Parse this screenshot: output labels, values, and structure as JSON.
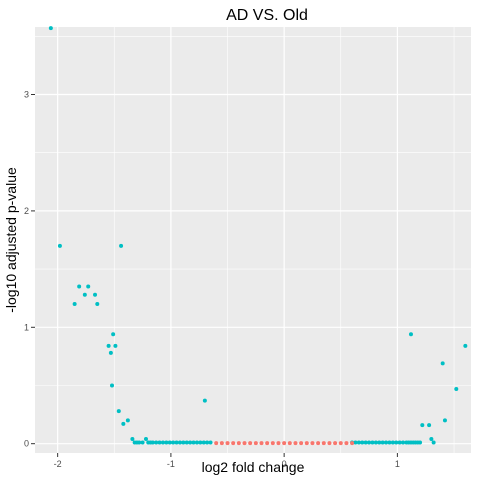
{
  "chart_data": {
    "type": "scatter",
    "title": "AD VS. Old",
    "xlabel": "log2 fold change",
    "ylabel": "-log10 adjusted p-value",
    "xlim": [
      -2.2,
      1.65
    ],
    "ylim": [
      -0.08,
      3.58
    ],
    "x_ticks": [
      -2,
      -1,
      0,
      1
    ],
    "y_ticks": [
      0,
      1,
      2,
      3
    ],
    "x_tick_labels": [
      "-2",
      "-1",
      "0",
      "1"
    ],
    "y_tick_labels": [
      "0",
      "1",
      "2",
      "3"
    ],
    "grid": true,
    "legend": "none",
    "colors": {
      "panel_background": "#EBEBEB",
      "grid_major": "#FFFFFF",
      "significant": "#00BFC4",
      "not_significant": "#F8766D"
    },
    "series": [
      {
        "color": "#00BFC4",
        "x": [
          -2.06,
          -1.98,
          -1.85,
          -1.81,
          -1.76,
          -1.73,
          -1.67,
          -1.65,
          -1.55,
          -1.53,
          -1.52,
          -1.51,
          -1.49,
          -1.46,
          -1.44,
          -1.42,
          -1.38,
          -1.34,
          -1.32,
          -1.3,
          -1.28,
          -1.25,
          -1.22,
          -1.2,
          -1.18,
          -1.16,
          -1.13,
          -1.1,
          -1.07,
          -1.04,
          -1.01,
          -0.98,
          -0.95,
          -0.92,
          -0.89,
          -0.86,
          -0.83,
          -0.8,
          -0.77,
          -0.74,
          -0.71,
          -0.68,
          -0.65,
          -0.7,
          0.6,
          0.63,
          0.66,
          0.69,
          0.72,
          0.75,
          0.78,
          0.81,
          0.84,
          0.87,
          0.9,
          0.93,
          0.96,
          0.99,
          1.02,
          1.05,
          1.08,
          1.1,
          1.12,
          1.14,
          1.16,
          1.18,
          1.2,
          1.12,
          1.22,
          1.28,
          1.3,
          1.32,
          1.4,
          1.42,
          1.52,
          1.6
        ],
        "y": [
          3.57,
          1.7,
          1.2,
          1.35,
          1.28,
          1.35,
          1.28,
          1.2,
          0.84,
          0.78,
          0.5,
          0.94,
          0.84,
          0.28,
          1.7,
          0.17,
          0.2,
          0.04,
          0.01,
          0.01,
          0.01,
          0.01,
          0.04,
          0.01,
          0.01,
          0.01,
          0.01,
          0.01,
          0.01,
          0.01,
          0.01,
          0.01,
          0.01,
          0.01,
          0.01,
          0.01,
          0.01,
          0.01,
          0.01,
          0.01,
          0.01,
          0.01,
          0.01,
          0.37,
          0.01,
          0.01,
          0.01,
          0.01,
          0.01,
          0.01,
          0.01,
          0.01,
          0.01,
          0.01,
          0.01,
          0.01,
          0.01,
          0.01,
          0.01,
          0.01,
          0.01,
          0.01,
          0.01,
          0.01,
          0.01,
          0.01,
          0.01,
          0.94,
          0.16,
          0.16,
          0.04,
          0.01,
          0.69,
          0.2,
          0.47,
          0.84
        ]
      },
      {
        "color": "#F8766D",
        "x": [
          -0.6,
          -0.55,
          -0.5,
          -0.45,
          -0.4,
          -0.35,
          -0.3,
          -0.25,
          -0.2,
          -0.15,
          -0.1,
          -0.05,
          0.0,
          0.05,
          0.1,
          0.15,
          0.2,
          0.25,
          0.3,
          0.35,
          0.4,
          0.45,
          0.5,
          0.55,
          0.6
        ],
        "y": [
          0.005,
          0.005,
          0.005,
          0.005,
          0.005,
          0.005,
          0.005,
          0.005,
          0.005,
          0.005,
          0.005,
          0.005,
          0.005,
          0.005,
          0.005,
          0.005,
          0.005,
          0.005,
          0.005,
          0.005,
          0.005,
          0.005,
          0.005,
          0.005,
          0.005
        ]
      }
    ]
  }
}
